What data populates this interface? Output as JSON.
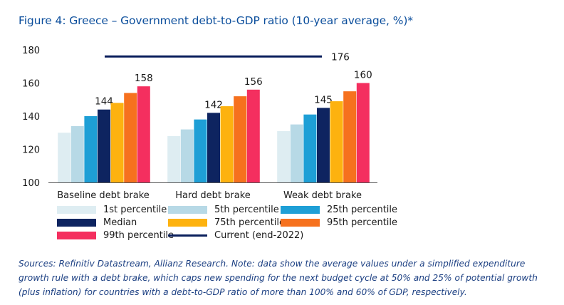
{
  "title": "Figure 4: Greece – Government debt-to-GDP ratio (10-year average, %)*",
  "chart_data": {
    "type": "bar",
    "categories": [
      "Baseline debt brake",
      "Hard debt brake",
      "Weak debt brake"
    ],
    "series": [
      {
        "name": "1st percentile",
        "color": "#deedf2",
        "values": [
          130,
          128,
          131
        ]
      },
      {
        "name": "5th percentile",
        "color": "#b7d9e6",
        "values": [
          134,
          132,
          135
        ]
      },
      {
        "name": "25th percentile",
        "color": "#1e9fd6",
        "values": [
          140,
          138,
          141
        ]
      },
      {
        "name": "Median",
        "color": "#0e2460",
        "values": [
          144,
          142,
          145
        ]
      },
      {
        "name": "75th percentile",
        "color": "#fdb20f",
        "values": [
          148,
          146,
          149
        ]
      },
      {
        "name": "95th percentile",
        "color": "#f6711e",
        "values": [
          154,
          152,
          155
        ]
      },
      {
        "name": "99th percentile",
        "color": "#f42f5f",
        "values": [
          158,
          156,
          160
        ]
      }
    ],
    "data_labels": [
      {
        "series": "Median",
        "category": "Baseline debt brake",
        "text": "144"
      },
      {
        "series": "99th percentile",
        "category": "Baseline debt brake",
        "text": "158"
      },
      {
        "series": "Median",
        "category": "Hard debt brake",
        "text": "142"
      },
      {
        "series": "99th percentile",
        "category": "Hard debt brake",
        "text": "156"
      },
      {
        "series": "Median",
        "category": "Weak debt brake",
        "text": "145"
      },
      {
        "series": "99th percentile",
        "category": "Weak debt brake",
        "text": "160"
      }
    ],
    "reference_line": {
      "name": "Current (end-2022)",
      "value": 176,
      "label": "176",
      "color": "#0a1f5c"
    },
    "yticks": [
      "100",
      "120",
      "140",
      "160",
      "180"
    ],
    "ylim": [
      100,
      180
    ],
    "xlabel": "",
    "ylabel": "",
    "grid": false,
    "legend_position": "bottom"
  },
  "legend": {
    "items": [
      "1st percentile",
      "5th percentile",
      "25th percentile",
      "Median",
      "75th percentile",
      "95th percentile",
      "99th percentile",
      "Current (end-2022)"
    ]
  },
  "source_note": "Sources: Refinitiv Datastream, Allianz Research. Note: data show the average values under a simplified expenditure growth rule with a debt brake, which caps new spending for the next budget cycle at 50% and 25% of potential growth (plus inflation) for countries with a debt-to-GDP ratio of more than 100% and 60% of GDP, respectively."
}
